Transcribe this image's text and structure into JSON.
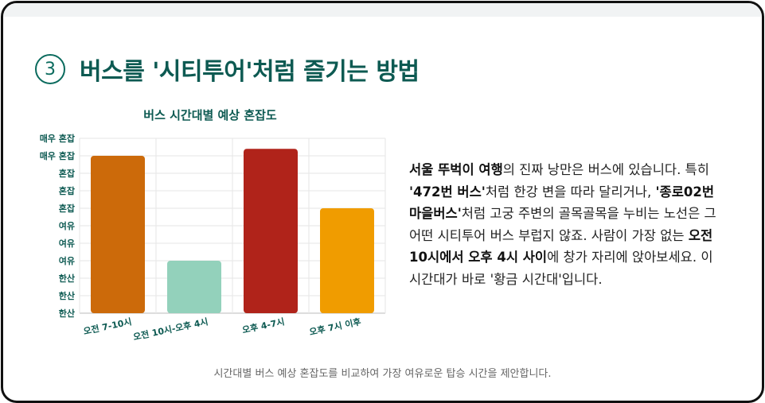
{
  "heading": {
    "number": "3",
    "title": "버스를 '시티투어'처럼 즐기는 방법"
  },
  "colors": {
    "brand": "#0d5a52",
    "accent": "#0b6b5e"
  },
  "chart_data": {
    "type": "bar",
    "title": "버스 시간대별 예상 혼잡도",
    "categories": [
      "오전 7-10시",
      "오전 10시-오후 4시",
      "오후 4-7시",
      "오후 7시 이후"
    ],
    "values": [
      9,
      3,
      9.4,
      6
    ],
    "colors": [
      "#cc6a0a",
      "#93d1bb",
      "#b0231a",
      "#f09c00"
    ],
    "y_tick_labels": [
      "한산",
      "한산",
      "한산",
      "여유",
      "여유",
      "여유",
      "혼잡",
      "혼잡",
      "혼잡",
      "매우 혼잡",
      "매우 혼잡"
    ],
    "ylim": [
      0,
      10
    ],
    "grid": true
  },
  "paragraph": {
    "p1": "서울 뚜벅이 여행",
    "p2": "의 진짜 낭만은 버스에 있습니다. 특히 ",
    "p3": "'472번 버스'",
    "p4": "처럼 한강 변을 따라 달리거나, ",
    "p5": "'종로02번 마을버스'",
    "p6": "처럼 고궁 주변의 골목골목을 누비는 노선은 그 어떤 시티투어 버스 부럽지 않죠. 사람이 가장 없는 ",
    "p7": "오전 10시에서 오후 4시 사이",
    "p8": "에 창가 자리에 앉아보세요. 이 시간대가 바로 '황금 시간대'입니다."
  },
  "caption": "시간대별 버스 예상 혼잡도를 비교하여 가장 여유로운 탑승 시간을 제안합니다."
}
